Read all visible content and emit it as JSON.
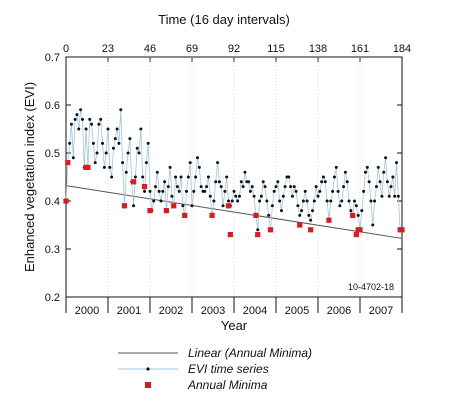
{
  "chart_data": {
    "type": "line",
    "top_axis_title": "Time (16 day intervals)",
    "top_ticks": [
      "0",
      "23",
      "46",
      "69",
      "92",
      "115",
      "138",
      "161",
      "184"
    ],
    "ylabel": "Enhanced vegetation index (EVI)",
    "xlabel": "Year",
    "ylim": [
      0.2,
      0.7
    ],
    "y_ticks": [
      "0.2",
      "0.3",
      "0.4",
      "0.5",
      "0.6",
      "0.7"
    ],
    "year_labels": [
      "2000",
      "2001",
      "2002",
      "2003",
      "2004",
      "2005",
      "2006",
      "2007"
    ],
    "annotation": "10-4702-18",
    "grid": false,
    "legend_position": "below",
    "legend": {
      "linear": "Linear (Annual Minima)",
      "evi": "EVI time series",
      "minima": "Annual Minima"
    },
    "colors": {
      "evi_line": "#9fc4e6",
      "evi_point": "#111111",
      "minima": "#e0191f",
      "trend": "#555555"
    },
    "linear_trend": {
      "x": [
        0,
        184
      ],
      "y": [
        0.432,
        0.322
      ]
    },
    "evi_series": [
      {
        "x": 0,
        "y": 0.4
      },
      {
        "x": 1,
        "y": 0.48
      },
      {
        "x": 2,
        "y": 0.52
      },
      {
        "x": 3,
        "y": 0.56
      },
      {
        "x": 4,
        "y": 0.49
      },
      {
        "x": 5,
        "y": 0.57
      },
      {
        "x": 6,
        "y": 0.58
      },
      {
        "x": 7,
        "y": 0.55
      },
      {
        "x": 8,
        "y": 0.59
      },
      {
        "x": 9,
        "y": 0.57
      },
      {
        "x": 10,
        "y": 0.47
      },
      {
        "x": 11,
        "y": 0.55
      },
      {
        "x": 12,
        "y": 0.47
      },
      {
        "x": 13,
        "y": 0.57
      },
      {
        "x": 14,
        "y": 0.56
      },
      {
        "x": 15,
        "y": 0.52
      },
      {
        "x": 16,
        "y": 0.48
      },
      {
        "x": 17,
        "y": 0.5
      },
      {
        "x": 18,
        "y": 0.56
      },
      {
        "x": 19,
        "y": 0.57
      },
      {
        "x": 20,
        "y": 0.52
      },
      {
        "x": 21,
        "y": 0.47
      },
      {
        "x": 22,
        "y": 0.5
      },
      {
        "x": 23,
        "y": 0.55
      },
      {
        "x": 24,
        "y": 0.47
      },
      {
        "x": 25,
        "y": 0.45
      },
      {
        "x": 26,
        "y": 0.51
      },
      {
        "x": 27,
        "y": 0.53
      },
      {
        "x": 28,
        "y": 0.55
      },
      {
        "x": 29,
        "y": 0.52
      },
      {
        "x": 30,
        "y": 0.59
      },
      {
        "x": 31,
        "y": 0.48
      },
      {
        "x": 32,
        "y": 0.39
      },
      {
        "x": 33,
        "y": 0.46
      },
      {
        "x": 34,
        "y": 0.5
      },
      {
        "x": 35,
        "y": 0.53
      },
      {
        "x": 36,
        "y": 0.44
      },
      {
        "x": 37,
        "y": 0.39
      },
      {
        "x": 38,
        "y": 0.45
      },
      {
        "x": 39,
        "y": 0.51
      },
      {
        "x": 40,
        "y": 0.5
      },
      {
        "x": 41,
        "y": 0.55
      },
      {
        "x": 42,
        "y": 0.45
      },
      {
        "x": 43,
        "y": 0.42
      },
      {
        "x": 44,
        "y": 0.48
      },
      {
        "x": 45,
        "y": 0.52
      },
      {
        "x": 46,
        "y": 0.42
      },
      {
        "x": 47,
        "y": 0.38
      },
      {
        "x": 48,
        "y": 0.4
      },
      {
        "x": 49,
        "y": 0.43
      },
      {
        "x": 50,
        "y": 0.46
      },
      {
        "x": 51,
        "y": 0.42
      },
      {
        "x": 52,
        "y": 0.4
      },
      {
        "x": 53,
        "y": 0.42
      },
      {
        "x": 54,
        "y": 0.44
      },
      {
        "x": 55,
        "y": 0.38
      },
      {
        "x": 56,
        "y": 0.43
      },
      {
        "x": 57,
        "y": 0.47
      },
      {
        "x": 58,
        "y": 0.41
      },
      {
        "x": 59,
        "y": 0.39
      },
      {
        "x": 60,
        "y": 0.45
      },
      {
        "x": 61,
        "y": 0.43
      },
      {
        "x": 62,
        "y": 0.42
      },
      {
        "x": 63,
        "y": 0.45
      },
      {
        "x": 64,
        "y": 0.39
      },
      {
        "x": 65,
        "y": 0.37
      },
      {
        "x": 66,
        "y": 0.42
      },
      {
        "x": 67,
        "y": 0.45
      },
      {
        "x": 68,
        "y": 0.48
      },
      {
        "x": 69,
        "y": 0.39
      },
      {
        "x": 70,
        "y": 0.42
      },
      {
        "x": 71,
        "y": 0.45
      },
      {
        "x": 72,
        "y": 0.49
      },
      {
        "x": 73,
        "y": 0.47
      },
      {
        "x": 74,
        "y": 0.43
      },
      {
        "x": 75,
        "y": 0.42
      },
      {
        "x": 76,
        "y": 0.42
      },
      {
        "x": 77,
        "y": 0.43
      },
      {
        "x": 78,
        "y": 0.45
      },
      {
        "x": 79,
        "y": 0.41
      },
      {
        "x": 80,
        "y": 0.37
      },
      {
        "x": 81,
        "y": 0.4
      },
      {
        "x": 82,
        "y": 0.44
      },
      {
        "x": 83,
        "y": 0.48
      },
      {
        "x": 84,
        "y": 0.44
      },
      {
        "x": 85,
        "y": 0.43
      },
      {
        "x": 86,
        "y": 0.39
      },
      {
        "x": 87,
        "y": 0.42
      },
      {
        "x": 88,
        "y": 0.45
      },
      {
        "x": 89,
        "y": 0.4
      },
      {
        "x": 90,
        "y": 0.39
      },
      {
        "x": 91,
        "y": 0.4
      },
      {
        "x": 92,
        "y": 0.42
      },
      {
        "x": 93,
        "y": 0.41
      },
      {
        "x": 94,
        "y": 0.4
      },
      {
        "x": 95,
        "y": 0.41
      },
      {
        "x": 96,
        "y": 0.44
      },
      {
        "x": 97,
        "y": 0.43
      },
      {
        "x": 98,
        "y": 0.46
      },
      {
        "x": 99,
        "y": 0.44
      },
      {
        "x": 100,
        "y": 0.44
      },
      {
        "x": 101,
        "y": 0.42
      },
      {
        "x": 102,
        "y": 0.43
      },
      {
        "x": 103,
        "y": 0.41
      },
      {
        "x": 104,
        "y": 0.37
      },
      {
        "x": 105,
        "y": 0.34
      },
      {
        "x": 106,
        "y": 0.4
      },
      {
        "x": 107,
        "y": 0.41
      },
      {
        "x": 108,
        "y": 0.44
      },
      {
        "x": 109,
        "y": 0.43
      },
      {
        "x": 110,
        "y": 0.4
      },
      {
        "x": 111,
        "y": 0.37
      },
      {
        "x": 112,
        "y": 0.34
      },
      {
        "x": 113,
        "y": 0.39
      },
      {
        "x": 114,
        "y": 0.42
      },
      {
        "x": 115,
        "y": 0.43
      },
      {
        "x": 116,
        "y": 0.44
      },
      {
        "x": 117,
        "y": 0.4
      },
      {
        "x": 118,
        "y": 0.38
      },
      {
        "x": 119,
        "y": 0.41
      },
      {
        "x": 120,
        "y": 0.43
      },
      {
        "x": 121,
        "y": 0.45
      },
      {
        "x": 122,
        "y": 0.45
      },
      {
        "x": 123,
        "y": 0.43
      },
      {
        "x": 124,
        "y": 0.41
      },
      {
        "x": 125,
        "y": 0.43
      },
      {
        "x": 126,
        "y": 0.42
      },
      {
        "x": 127,
        "y": 0.39
      },
      {
        "x": 128,
        "y": 0.37
      },
      {
        "x": 129,
        "y": 0.38
      },
      {
        "x": 130,
        "y": 0.4
      },
      {
        "x": 131,
        "y": 0.42
      },
      {
        "x": 132,
        "y": 0.4
      },
      {
        "x": 133,
        "y": 0.37
      },
      {
        "x": 134,
        "y": 0.36
      },
      {
        "x": 135,
        "y": 0.38
      },
      {
        "x": 136,
        "y": 0.4
      },
      {
        "x": 137,
        "y": 0.43
      },
      {
        "x": 138,
        "y": 0.41
      },
      {
        "x": 139,
        "y": 0.42
      },
      {
        "x": 140,
        "y": 0.44
      },
      {
        "x": 141,
        "y": 0.45
      },
      {
        "x": 142,
        "y": 0.44
      },
      {
        "x": 143,
        "y": 0.4
      },
      {
        "x": 144,
        "y": 0.36
      },
      {
        "x": 145,
        "y": 0.4
      },
      {
        "x": 146,
        "y": 0.42
      },
      {
        "x": 147,
        "y": 0.45
      },
      {
        "x": 148,
        "y": 0.47
      },
      {
        "x": 149,
        "y": 0.42
      },
      {
        "x": 150,
        "y": 0.39
      },
      {
        "x": 151,
        "y": 0.4
      },
      {
        "x": 152,
        "y": 0.43
      },
      {
        "x": 153,
        "y": 0.46
      },
      {
        "x": 154,
        "y": 0.44
      },
      {
        "x": 155,
        "y": 0.4
      },
      {
        "x": 156,
        "y": 0.38
      },
      {
        "x": 157,
        "y": 0.37
      },
      {
        "x": 158,
        "y": 0.4
      },
      {
        "x": 159,
        "y": 0.39
      },
      {
        "x": 160,
        "y": 0.37
      },
      {
        "x": 161,
        "y": 0.34
      },
      {
        "x": 162,
        "y": 0.38
      },
      {
        "x": 163,
        "y": 0.42
      },
      {
        "x": 164,
        "y": 0.46
      },
      {
        "x": 165,
        "y": 0.47
      },
      {
        "x": 166,
        "y": 0.44
      },
      {
        "x": 167,
        "y": 0.4
      },
      {
        "x": 168,
        "y": 0.35
      },
      {
        "x": 169,
        "y": 0.4
      },
      {
        "x": 170,
        "y": 0.43
      },
      {
        "x": 171,
        "y": 0.47
      },
      {
        "x": 172,
        "y": 0.44
      },
      {
        "x": 173,
        "y": 0.41
      },
      {
        "x": 174,
        "y": 0.46
      },
      {
        "x": 175,
        "y": 0.49
      },
      {
        "x": 176,
        "y": 0.44
      },
      {
        "x": 177,
        "y": 0.41
      },
      {
        "x": 178,
        "y": 0.43
      },
      {
        "x": 179,
        "y": 0.45
      },
      {
        "x": 180,
        "y": 0.41
      },
      {
        "x": 181,
        "y": 0.48
      },
      {
        "x": 182,
        "y": 0.41
      },
      {
        "x": 183,
        "y": 0.34
      },
      {
        "x": 184,
        "y": 0.34
      }
    ],
    "annual_minima": [
      {
        "x": 0,
        "y": 0.4
      },
      {
        "x": 1,
        "y": 0.48
      },
      {
        "x": 11,
        "y": 0.47
      },
      {
        "x": 12,
        "y": 0.47
      },
      {
        "x": 32,
        "y": 0.39
      },
      {
        "x": 37,
        "y": 0.44
      },
      {
        "x": 43,
        "y": 0.43
      },
      {
        "x": 46,
        "y": 0.38
      },
      {
        "x": 55,
        "y": 0.38
      },
      {
        "x": 59,
        "y": 0.39
      },
      {
        "x": 65,
        "y": 0.37
      },
      {
        "x": 80,
        "y": 0.37
      },
      {
        "x": 89,
        "y": 0.39
      },
      {
        "x": 90,
        "y": 0.33
      },
      {
        "x": 104,
        "y": 0.37
      },
      {
        "x": 105,
        "y": 0.33
      },
      {
        "x": 112,
        "y": 0.34
      },
      {
        "x": 128,
        "y": 0.35
      },
      {
        "x": 134,
        "y": 0.34
      },
      {
        "x": 144,
        "y": 0.36
      },
      {
        "x": 157,
        "y": 0.37
      },
      {
        "x": 159,
        "y": 0.33
      },
      {
        "x": 160,
        "y": 0.34
      },
      {
        "x": 161,
        "y": 0.34
      },
      {
        "x": 183,
        "y": 0.34
      },
      {
        "x": 184,
        "y": 0.34
      }
    ]
  }
}
